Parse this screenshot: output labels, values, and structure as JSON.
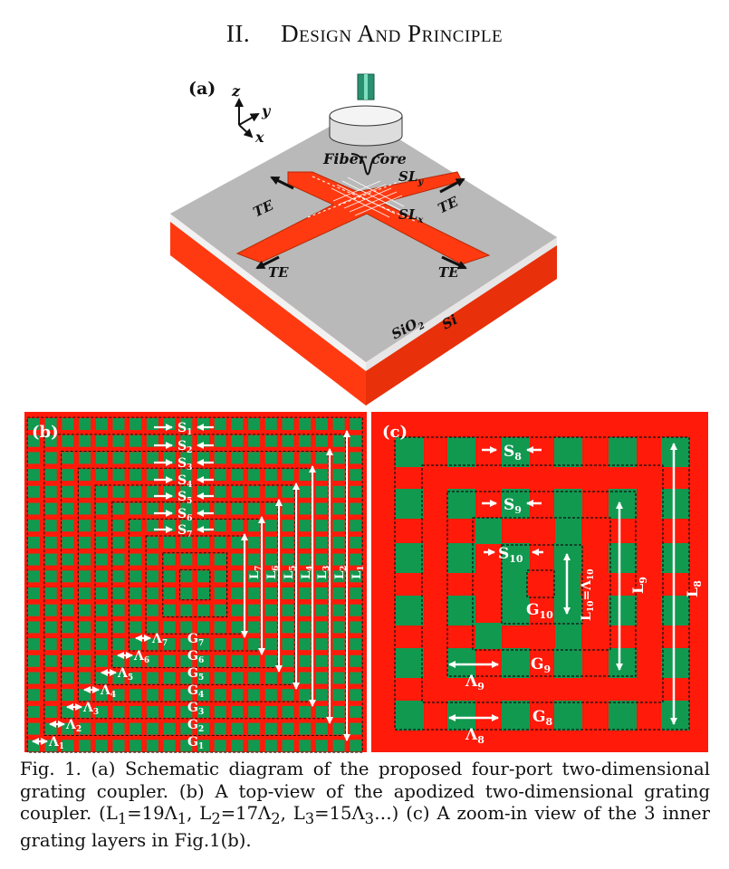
{
  "heading": {
    "number": "II.",
    "title": "Design And Principle"
  },
  "figure": {
    "panel_a": {
      "label": "(a)",
      "axes": {
        "z": "z",
        "y": "y",
        "x": "x"
      },
      "fiber": "Fiber core",
      "sly": "SL",
      "sly_sub": "y",
      "slx": "SL",
      "slx_sub": "x",
      "te": "TE",
      "sio2": "SiO",
      "sio2_sub": "2",
      "si": "Si"
    },
    "panel_b": {
      "label": "(b)",
      "s_labels": [
        "S",
        "S",
        "S",
        "S",
        "S",
        "S",
        "S"
      ],
      "s_subs": [
        "1",
        "2",
        "3",
        "4",
        "5",
        "6",
        "7"
      ],
      "g_labels": [
        "G",
        "G",
        "G",
        "G",
        "G",
        "G",
        "G"
      ],
      "g_subs": [
        "1",
        "2",
        "3",
        "4",
        "5",
        "6",
        "7"
      ],
      "lambda_labels": [
        "Λ",
        "Λ",
        "Λ",
        "Λ",
        "Λ",
        "Λ",
        "Λ"
      ],
      "lambda_subs": [
        "1",
        "2",
        "3",
        "4",
        "5",
        "6",
        "7"
      ],
      "l_labels": [
        "L",
        "L",
        "L",
        "L",
        "L",
        "L",
        "L"
      ],
      "l_subs": [
        "1",
        "2",
        "3",
        "4",
        "5",
        "6",
        "7"
      ]
    },
    "panel_c": {
      "label": "(c)",
      "s8": "S",
      "s8_sub": "8",
      "s9": "S",
      "s9_sub": "9",
      "s10": "S",
      "s10_sub": "10",
      "g10": "G",
      "g10_sub": "10",
      "g9": "G",
      "g9_sub": "9",
      "g8": "G",
      "g8_sub": "8",
      "l8": "L",
      "l8_sub": "8",
      "l9": "L",
      "l9_sub": "9",
      "l10": "L",
      "l10_sub": "10",
      "l10_eq": "=Λ",
      "l10_eq_sub": "10",
      "lam9": "Λ",
      "lam9_sub": "9",
      "lam8": "Λ",
      "lam8_sub": "8"
    }
  },
  "caption": {
    "line1": "Fig. 1. (a) Schematic diagram of the proposed four-port two-dimensional grating coupler. (b) A top-view of the apodized two-dimensional grating coupler. (L",
    "s1": "1",
    "t1": "=19Λ",
    "s2": "1",
    "t2": ", L",
    "s3": "2",
    "t3": "=17Λ",
    "s4": "2",
    "t4": ", L",
    "s5": "3",
    "t5": "=15Λ",
    "s6": "3",
    "t6": "…) (c) A zoom-in view of the 3 inner grating layers in Fig.1(b)."
  },
  "colors": {
    "red": "#ff1a0a",
    "green": "#119950",
    "gray": "#b9b9b9",
    "orange": "#ff3a10"
  }
}
